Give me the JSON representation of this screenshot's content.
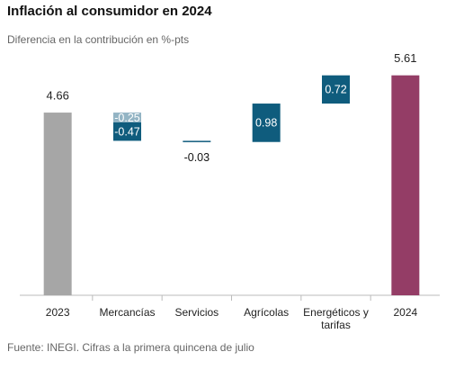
{
  "chart_data": {
    "type": "waterfall",
    "title": "Inflación al consumidor en 2024",
    "subtitle": "Diferencia en la contribución en %-pts",
    "source": "Fuente: INEGI. Cifras a la primera quincena de julio",
    "categories": [
      "2023",
      "Mercancías",
      "Servicios",
      "Agrícolas",
      "Energéticos y tarifas",
      "2024"
    ],
    "segments": [
      [
        4.66
      ],
      [
        -0.25,
        -0.47
      ],
      [
        -0.03
      ],
      [
        0.98
      ],
      [
        0.72
      ],
      [
        5.61
      ]
    ],
    "is_total": [
      true,
      false,
      false,
      false,
      false,
      true
    ],
    "colors": [
      [
        "#a6a6a6"
      ],
      [
        "#93b4c4",
        "#0f5c7d"
      ],
      [
        "#0f5c7d"
      ],
      [
        "#0f5c7d"
      ],
      [
        "#0f5c7d"
      ],
      [
        "#943d66"
      ]
    ],
    "ylim": [
      0,
      6.2
    ]
  }
}
